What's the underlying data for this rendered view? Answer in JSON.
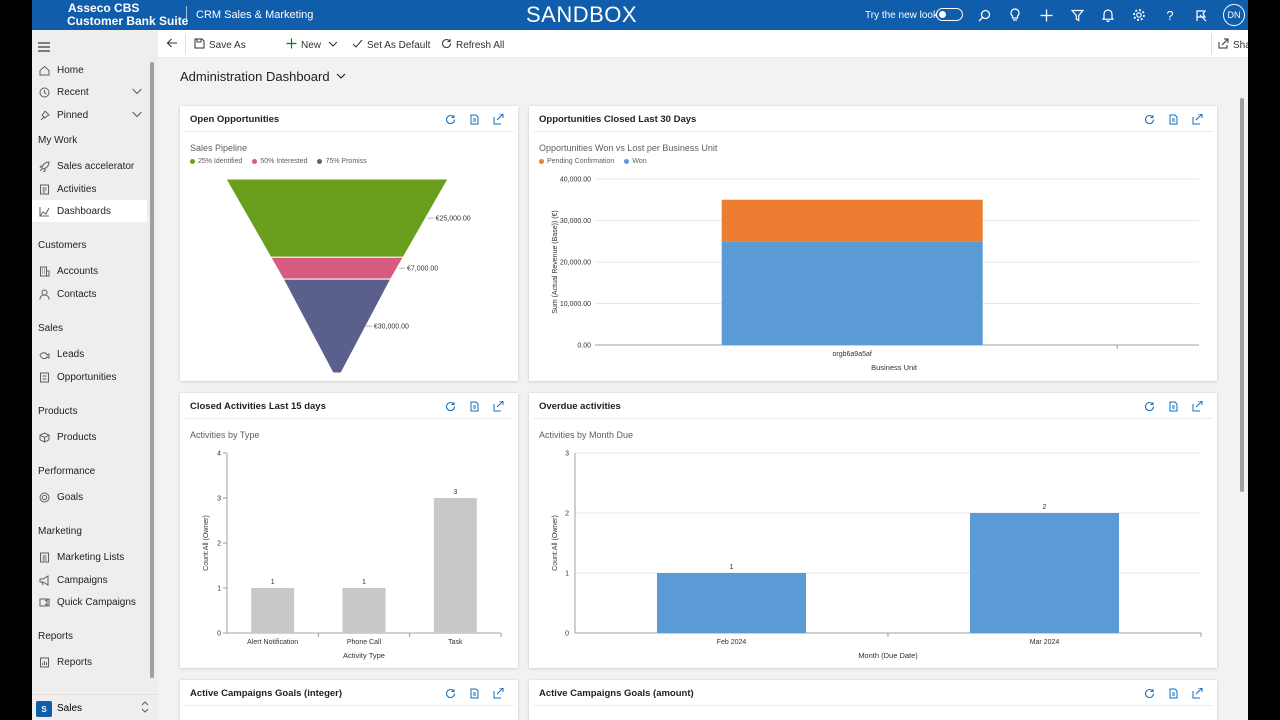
{
  "header": {
    "brand_line1": "Asseco CBS",
    "brand_line2": "Customer Bank Suite",
    "app_name": "CRM Sales & Marketing",
    "environment": "SANDBOX",
    "try_new_look": "Try the new look",
    "avatar_initials": "DN",
    "bar_color": "#0f5dab"
  },
  "sidebar": {
    "home": "Home",
    "recent": "Recent",
    "pinned": "Pinned",
    "my_work": "My Work",
    "sales_accelerator": "Sales accelerator",
    "activities": "Activities",
    "dashboards": "Dashboards",
    "customers": "Customers",
    "accounts": "Accounts",
    "contacts": "Contacts",
    "sales": "Sales",
    "leads": "Leads",
    "opportunities": "Opportunities",
    "products_group": "Products",
    "products": "Products",
    "performance": "Performance",
    "goals": "Goals",
    "marketing": "Marketing",
    "marketing_lists": "Marketing Lists",
    "campaigns": "Campaigns",
    "quick_campaigns": "Quick Campaigns",
    "reports_group": "Reports",
    "reports": "Reports",
    "area_badge": "S",
    "area_label": "Sales"
  },
  "toolbar": {
    "save_as": "Save As",
    "new": "New",
    "set_as_default": "Set As Default",
    "refresh_all": "Refresh All",
    "share": "Share"
  },
  "page": {
    "title": "Administration Dashboard"
  },
  "cards": {
    "open_opps": {
      "title": "Open Opportunities",
      "subtitle": "Sales Pipeline"
    },
    "closed_opps": {
      "title": "Opportunities Closed Last 30 Days",
      "subtitle": "Opportunities Won vs Lost per Business Unit"
    },
    "closed_acts": {
      "title": "Closed Activities Last 15 days",
      "subtitle": "Activities by Type"
    },
    "overdue": {
      "title": "Overdue activities",
      "subtitle": "Activities by Month Due"
    },
    "camp_int": {
      "title": "Active Campaigns Goals (integer)"
    },
    "camp_amt": {
      "title": "Active Campaigns Goals (amount)"
    }
  },
  "chart_data": [
    {
      "type": "funnel",
      "title": "Sales Pipeline",
      "categories": [
        "25% Identified",
        "50% Interested",
        "75% Promiss"
      ],
      "values": [
        25000,
        7000,
        30000
      ],
      "data_labels": [
        "€25,000.00",
        "€7,000.00",
        "€30,000.00"
      ],
      "colors": [
        "#6a9f1e",
        "#d75c7f",
        "#5a5f8b"
      ]
    },
    {
      "type": "bar",
      "stacked": true,
      "title": "Opportunities Won vs Lost per Business Unit",
      "categories": [
        "orgb6a9a5af"
      ],
      "series": [
        {
          "name": "Won",
          "values": [
            25000
          ],
          "color": "#5b9bd5"
        },
        {
          "name": "Pending Confirmation",
          "values": [
            10000
          ],
          "color": "#ed7d31"
        }
      ],
      "xlabel": "Business Unit",
      "ylabel": "Sum (Actual Revenue (Base)) (€)",
      "ylim": [
        0,
        40000
      ],
      "yticks": [
        "0.00",
        "10,000.00",
        "20,000.00",
        "30,000.00",
        "40,000.00"
      ],
      "grid": true
    },
    {
      "type": "bar",
      "title": "Activities by Type",
      "categories": [
        "Alert Notification",
        "Phone Call",
        "Task"
      ],
      "values": [
        1,
        1,
        3
      ],
      "xlabel": "Activity Type",
      "ylabel": "Count:All (Owner)",
      "ylim": [
        0,
        4
      ],
      "yticks": [
        "0",
        "1",
        "2",
        "3",
        "4"
      ],
      "color": "#c8c8c8",
      "grid": false
    },
    {
      "type": "bar",
      "title": "Activities by Month Due",
      "categories": [
        "Feb 2024",
        "Mar 2024"
      ],
      "values": [
        1,
        2
      ],
      "xlabel": "Month (Due Date)",
      "ylabel": "Count:All (Owner)",
      "ylim": [
        0,
        3
      ],
      "yticks": [
        "0",
        "1",
        "2",
        "3"
      ],
      "color": "#5b9bd5",
      "grid": true
    }
  ]
}
